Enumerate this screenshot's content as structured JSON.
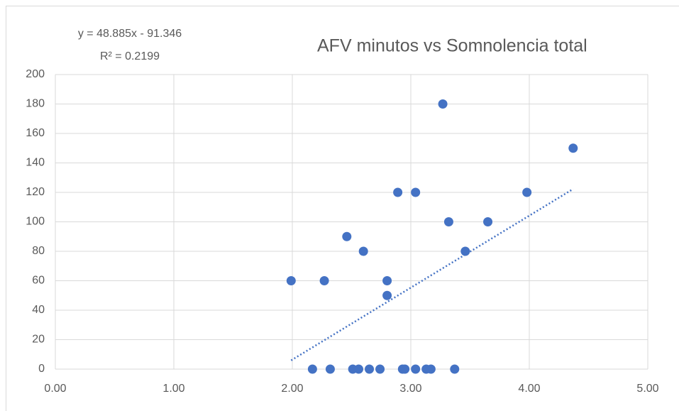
{
  "chart_data": {
    "type": "scatter",
    "title": "AFV minutos vs Somnolencia total",
    "series": [
      {
        "color": "#4472c4",
        "x": [
          1.99,
          2.27,
          2.46,
          2.6,
          2.8,
          2.8,
          2.89,
          3.04,
          3.27,
          3.32,
          3.46,
          3.65,
          3.98,
          4.37,
          2.17,
          2.32,
          2.51,
          2.56,
          2.65,
          2.74,
          2.93,
          2.95,
          3.04,
          3.13,
          3.17,
          3.37
        ],
        "values": [
          60,
          60,
          90,
          80,
          60,
          50,
          120,
          120,
          180,
          100,
          80,
          100,
          120,
          150,
          0,
          0,
          0,
          0,
          0,
          0,
          0,
          0,
          0,
          0,
          0,
          0
        ]
      }
    ],
    "trendline": {
      "label": "y = 48.885x - 91.346",
      "r2_label": "R² = 0.2199",
      "slope": 48.885,
      "intercept": -91.346,
      "r2": 0.2199
    },
    "xlim": [
      0,
      5
    ],
    "xticks": [
      {
        "value": 0,
        "label": "0.00"
      },
      {
        "value": 1,
        "label": "1.00"
      },
      {
        "value": 2,
        "label": "2.00"
      },
      {
        "value": 3,
        "label": "3.00"
      },
      {
        "value": 4,
        "label": "4.00"
      },
      {
        "value": 5,
        "label": "5.00"
      }
    ],
    "ylim": [
      0,
      200
    ],
    "yticks": [
      0,
      20,
      40,
      60,
      80,
      100,
      120,
      140,
      160,
      180,
      200
    ],
    "grid": true
  }
}
